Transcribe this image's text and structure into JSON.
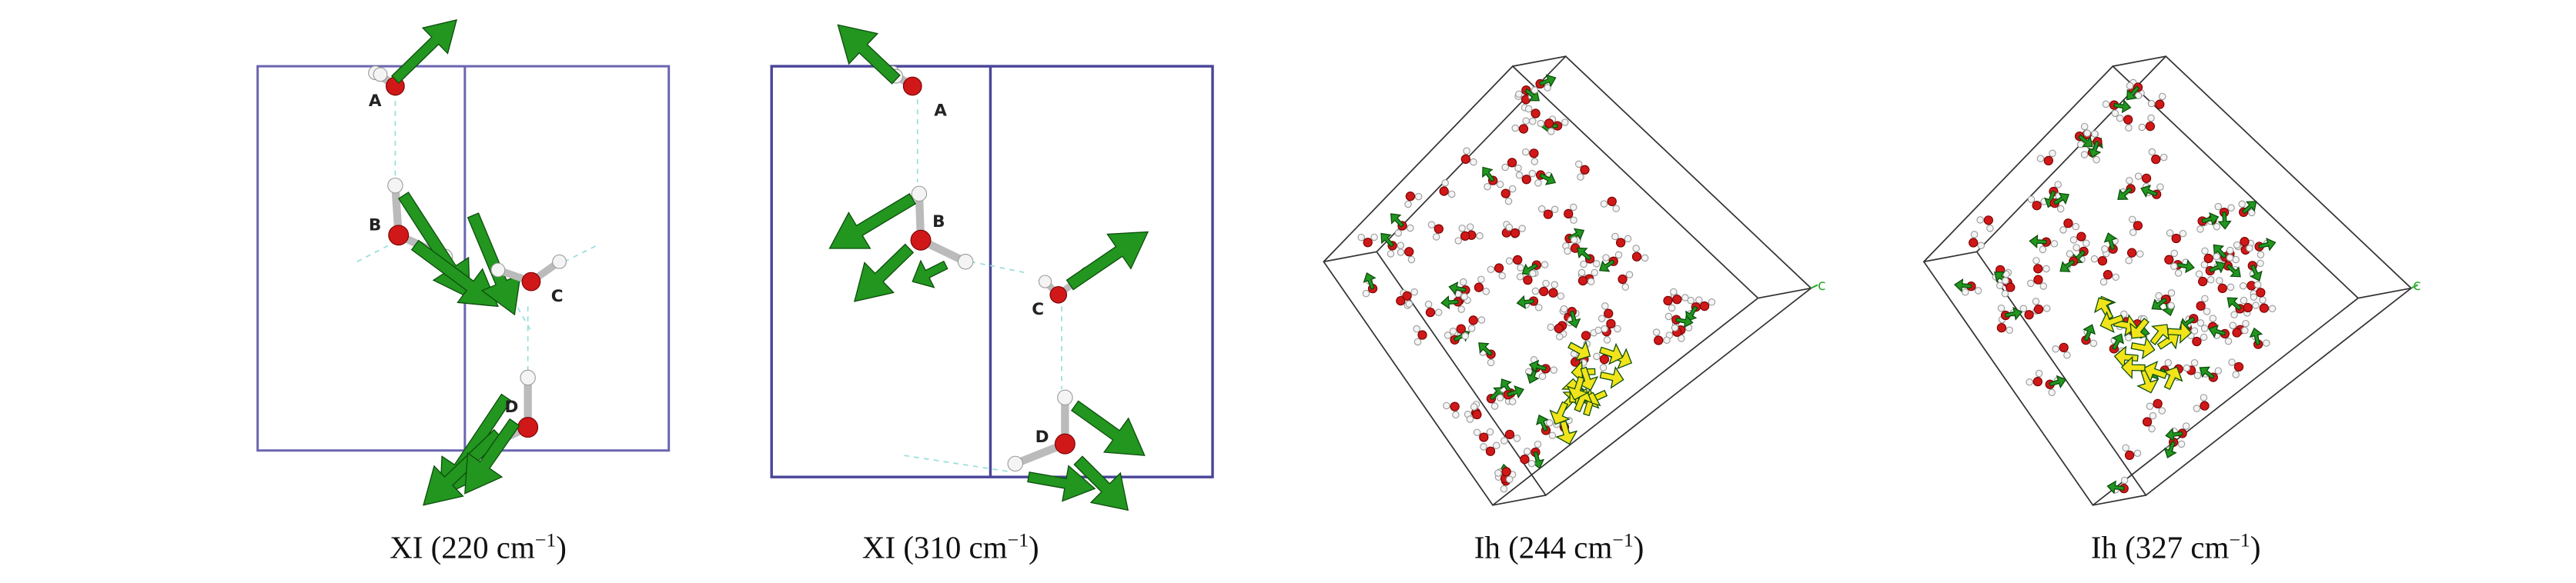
{
  "panels": [
    {
      "atom_labels": [
        "A",
        "B",
        "C",
        "D"
      ],
      "caption": {
        "text": "XI (220 cm",
        "sup": "−1",
        "close": ")"
      }
    },
    {
      "atom_labels": [
        "A",
        "B",
        "C",
        "D"
      ],
      "caption": {
        "text": "XI (310 cm",
        "sup": "−1",
        "close": ")"
      }
    },
    {
      "axis_label": "c",
      "caption": {
        "text": "Ih (244 cm",
        "sup": "−1",
        "close": ")"
      }
    },
    {
      "axis_label": "c",
      "caption": {
        "text": "Ih (327 cm",
        "sup": "−1",
        "close": ")"
      }
    }
  ]
}
